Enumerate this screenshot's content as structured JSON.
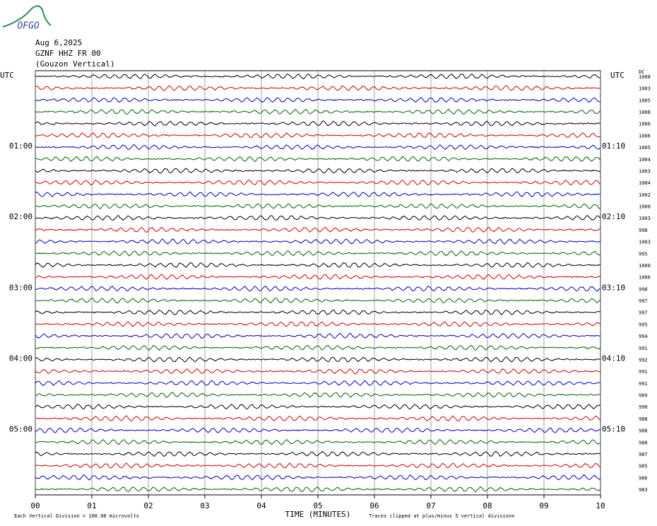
{
  "chart_data": {
    "type": "helicorder",
    "logo": "OFGO",
    "title": "Aug 6,2025",
    "subtitle": "GZNF HHZ FR 00",
    "station": "(Gouzon Vertical)",
    "dc_header": "DC",
    "row_labels_left": [
      "UTC",
      null,
      null,
      null,
      null,
      null,
      "01:00",
      null,
      null,
      null,
      null,
      null,
      "02:00",
      null,
      null,
      null,
      null,
      null,
      "03:00",
      null,
      null,
      null,
      null,
      null,
      "04:00",
      null,
      null,
      null,
      null,
      null,
      "05:00",
      null,
      null,
      null,
      null,
      null
    ],
    "row_labels_right": [
      "UTC",
      null,
      null,
      null,
      null,
      null,
      "01:10",
      null,
      null,
      null,
      null,
      null,
      "02:10",
      null,
      null,
      null,
      null,
      null,
      "03:10",
      null,
      null,
      null,
      null,
      null,
      "04:10",
      null,
      null,
      null,
      null,
      null,
      "05:10",
      null,
      null,
      null,
      null,
      null
    ],
    "dc": [
      1008,
      1003,
      1005,
      1008,
      1006,
      1006,
      1005,
      1004,
      1003,
      1004,
      1002,
      1000,
      1003,
      998,
      1003,
      995,
      1000,
      1000,
      998,
      997,
      997,
      995,
      994,
      991,
      992,
      991,
      991,
      989,
      990,
      988,
      988,
      988,
      987,
      985,
      986,
      983
    ],
    "colors": [
      "#000000",
      "#d00000",
      "#0000c0",
      "#006400"
    ],
    "xlim": [
      0,
      10
    ],
    "xticks": [
      {
        "value": 0,
        "label": "00"
      },
      {
        "value": 1,
        "label": "01"
      },
      {
        "value": 2,
        "label": "02"
      },
      {
        "value": 3,
        "label": "03"
      },
      {
        "value": 4,
        "label": "04"
      },
      {
        "value": 5,
        "label": "05"
      },
      {
        "value": 6,
        "label": "06"
      },
      {
        "value": 7,
        "label": "07"
      },
      {
        "value": 8,
        "label": "08"
      },
      {
        "value": 9,
        "label": "09"
      },
      10
    ],
    "xlabel": "TIME (MINUTES)",
    "footer_left": "Each Vertical Division =  100.00 microvolts",
    "footer_right": "Traces clipped at plus/minus 5 vertical divisions",
    "grid": true
  }
}
